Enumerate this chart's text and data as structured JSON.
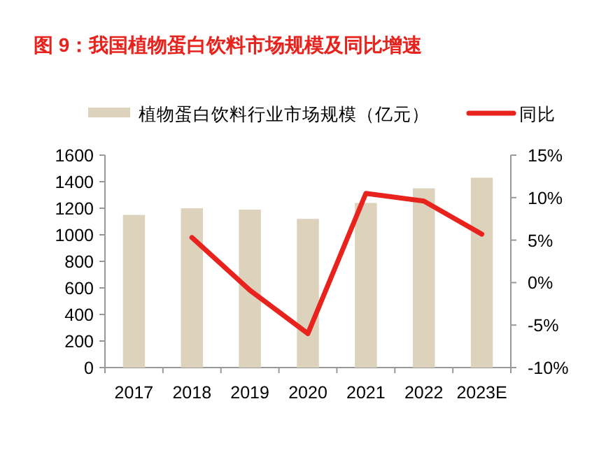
{
  "chart_data": {
    "type": "bar",
    "title": "图 9：我国植物蛋白饮料市场规模及同比增速",
    "categories": [
      "2017",
      "2018",
      "2019",
      "2020",
      "2021",
      "2022",
      "2023E"
    ],
    "series": [
      {
        "name": "植物蛋白饮料行业市场规模（亿元）",
        "color": "#ddd3bc",
        "values": [
          1150,
          1200,
          1190,
          1120,
          1240,
          1350,
          1430
        ]
      },
      {
        "name": "同比",
        "type": "line",
        "axis": "y2",
        "color": "#e8221c",
        "values": [
          null,
          5.3,
          -0.9,
          -6.0,
          10.5,
          9.6,
          5.7
        ]
      }
    ],
    "ylim": [
      0,
      1600
    ],
    "yticks": [
      0,
      200,
      400,
      600,
      800,
      1000,
      1200,
      1400,
      1600
    ],
    "y2lim": [
      -10,
      15
    ],
    "y2ticks": [
      {
        "value": -10,
        "label": "-10%"
      },
      {
        "value": -5,
        "label": "-5%"
      },
      {
        "value": 0,
        "label": "0%"
      },
      {
        "value": 5,
        "label": "5%"
      },
      {
        "value": 10,
        "label": "10%"
      },
      {
        "value": 15,
        "label": "15%"
      }
    ],
    "legend": "top",
    "grid": false,
    "marker": "none",
    "line_style": "solid"
  }
}
